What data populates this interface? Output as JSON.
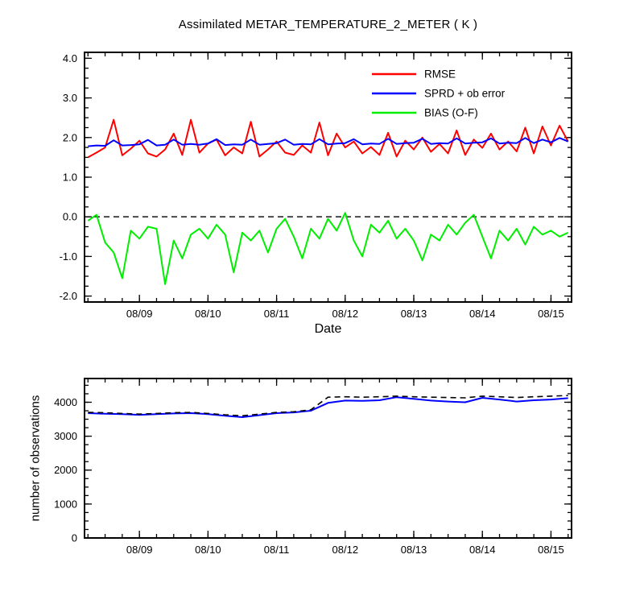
{
  "chart_data": [
    {
      "type": "line",
      "title": "Assimilated METAR_TEMPERATURE_2_METER ( K )",
      "xlabel": "Date",
      "ylabel": "",
      "xlim": [
        8.2,
        15.3
      ],
      "ylim": [
        -2.15,
        4.15
      ],
      "xticks": [
        9,
        10,
        11,
        12,
        13,
        14,
        15
      ],
      "xtick_labels": [
        "08/09",
        "08/10",
        "08/11",
        "08/12",
        "08/13",
        "08/14",
        "08/15"
      ],
      "x_minor_step": 0.25,
      "yticks": [
        -2,
        -1,
        0,
        1,
        2,
        3,
        4
      ],
      "ytick_labels": [
        "-2.0",
        "-1.0",
        "0.0",
        "1.0",
        "2.0",
        "3.0",
        "4.0"
      ],
      "y_minor_step": 0.25,
      "zero_line": true,
      "legend_position": "top-right-inside",
      "x": [
        8.25,
        8.375,
        8.5,
        8.625,
        8.75,
        8.875,
        9.0,
        9.125,
        9.25,
        9.375,
        9.5,
        9.625,
        9.75,
        9.875,
        10.0,
        10.125,
        10.25,
        10.375,
        10.5,
        10.625,
        10.75,
        10.875,
        11.0,
        11.125,
        11.25,
        11.375,
        11.5,
        11.625,
        11.75,
        11.875,
        12.0,
        12.125,
        12.25,
        12.375,
        12.5,
        12.625,
        12.75,
        12.875,
        13.0,
        13.125,
        13.25,
        13.375,
        13.5,
        13.625,
        13.75,
        13.875,
        14.0,
        14.125,
        14.25,
        14.375,
        14.5,
        14.625,
        14.75,
        14.875,
        15.0,
        15.125,
        15.25
      ],
      "series": [
        {
          "id": "rmse",
          "name": "RMSE",
          "color": "#ff0000",
          "style": "solid",
          "values": [
            1.5,
            1.62,
            1.75,
            2.45,
            1.55,
            1.72,
            1.92,
            1.6,
            1.52,
            1.7,
            2.1,
            1.56,
            2.45,
            1.62,
            1.85,
            1.95,
            1.55,
            1.75,
            1.6,
            2.4,
            1.52,
            1.7,
            1.9,
            1.62,
            1.56,
            1.8,
            1.62,
            2.38,
            1.55,
            2.1,
            1.75,
            1.9,
            1.6,
            1.76,
            1.56,
            2.12,
            1.52,
            1.92,
            1.7,
            2.0,
            1.64,
            1.84,
            1.6,
            2.18,
            1.56,
            1.95,
            1.74,
            2.1,
            1.7,
            1.9,
            1.65,
            2.25,
            1.6,
            2.28,
            1.8,
            2.3,
            1.9
          ]
        },
        {
          "id": "sprd-ob-error",
          "name": "SPRD + ob error",
          "color": "#0000ff",
          "style": "solid",
          "values": [
            1.78,
            1.8,
            1.79,
            1.93,
            1.8,
            1.81,
            1.83,
            1.94,
            1.8,
            1.82,
            1.95,
            1.82,
            1.84,
            1.82,
            1.85,
            1.96,
            1.81,
            1.83,
            1.82,
            1.95,
            1.82,
            1.84,
            1.86,
            1.95,
            1.82,
            1.84,
            1.83,
            1.96,
            1.83,
            1.85,
            1.86,
            1.96,
            1.83,
            1.85,
            1.84,
            1.97,
            1.84,
            1.86,
            1.87,
            1.97,
            1.84,
            1.86,
            1.85,
            1.98,
            1.85,
            1.87,
            1.88,
            1.98,
            1.85,
            1.87,
            1.86,
            1.99,
            1.86,
            1.95,
            1.88,
            1.99,
            1.9
          ]
        },
        {
          "id": "bias-o-f",
          "name": "BIAS (O-F)",
          "color": "#00ee00",
          "style": "solid",
          "values": [
            -0.1,
            0.05,
            -0.65,
            -0.9,
            -1.55,
            -0.35,
            -0.55,
            -0.25,
            -0.3,
            -1.7,
            -0.6,
            -1.05,
            -0.45,
            -0.3,
            -0.55,
            -0.2,
            -0.45,
            -1.4,
            -0.4,
            -0.6,
            -0.35,
            -0.9,
            -0.3,
            -0.05,
            -0.5,
            -1.05,
            -0.3,
            -0.55,
            -0.05,
            -0.35,
            0.1,
            -0.6,
            -1.0,
            -0.2,
            -0.4,
            -0.1,
            -0.55,
            -0.3,
            -0.6,
            -1.1,
            -0.45,
            -0.6,
            -0.2,
            -0.45,
            -0.15,
            0.05,
            -0.5,
            -1.05,
            -0.35,
            -0.6,
            -0.3,
            -0.7,
            -0.25,
            -0.45,
            -0.35,
            -0.5,
            -0.4
          ]
        }
      ]
    },
    {
      "type": "line",
      "title": "",
      "xlabel": "",
      "ylabel": "number of observations",
      "xlim": [
        8.2,
        15.3
      ],
      "ylim": [
        0,
        4700
      ],
      "xticks": [
        9,
        10,
        11,
        12,
        13,
        14,
        15
      ],
      "xtick_labels": [
        "08/09",
        "08/10",
        "08/11",
        "08/12",
        "08/13",
        "08/14",
        "08/15"
      ],
      "x_minor_step": 0.25,
      "yticks": [
        0,
        1000,
        2000,
        3000,
        4000
      ],
      "ytick_labels": [
        "0",
        "1000",
        "2000",
        "3000",
        "4000"
      ],
      "y_minor_step": 250,
      "zero_line": false,
      "legend_position": null,
      "x": [
        8.25,
        8.5,
        8.75,
        9.0,
        9.25,
        9.5,
        9.75,
        10.0,
        10.25,
        10.5,
        10.75,
        11.0,
        11.25,
        11.5,
        11.75,
        12.0,
        12.25,
        12.5,
        12.75,
        13.0,
        13.25,
        13.5,
        13.75,
        14.0,
        14.25,
        14.5,
        14.75,
        15.0,
        15.25
      ],
      "series": [
        {
          "id": "obs-blue-solid",
          "name": "blue solid",
          "color": "#0000ff",
          "style": "solid",
          "values": [
            3680,
            3660,
            3650,
            3630,
            3650,
            3670,
            3680,
            3650,
            3600,
            3560,
            3620,
            3680,
            3700,
            3750,
            3980,
            4050,
            4040,
            4060,
            4150,
            4100,
            4050,
            4020,
            4000,
            4130,
            4080,
            4020,
            4060,
            4080,
            4120
          ]
        },
        {
          "id": "obs-black-dashed",
          "name": "black dashed",
          "color": "#000000",
          "style": "dashed",
          "values": [
            3700,
            3690,
            3670,
            3650,
            3670,
            3690,
            3700,
            3670,
            3630,
            3600,
            3650,
            3700,
            3720,
            3780,
            4150,
            4160,
            4150,
            4160,
            4180,
            4160,
            4150,
            4140,
            4130,
            4180,
            4160,
            4140,
            4160,
            4180,
            4200
          ]
        }
      ]
    }
  ]
}
